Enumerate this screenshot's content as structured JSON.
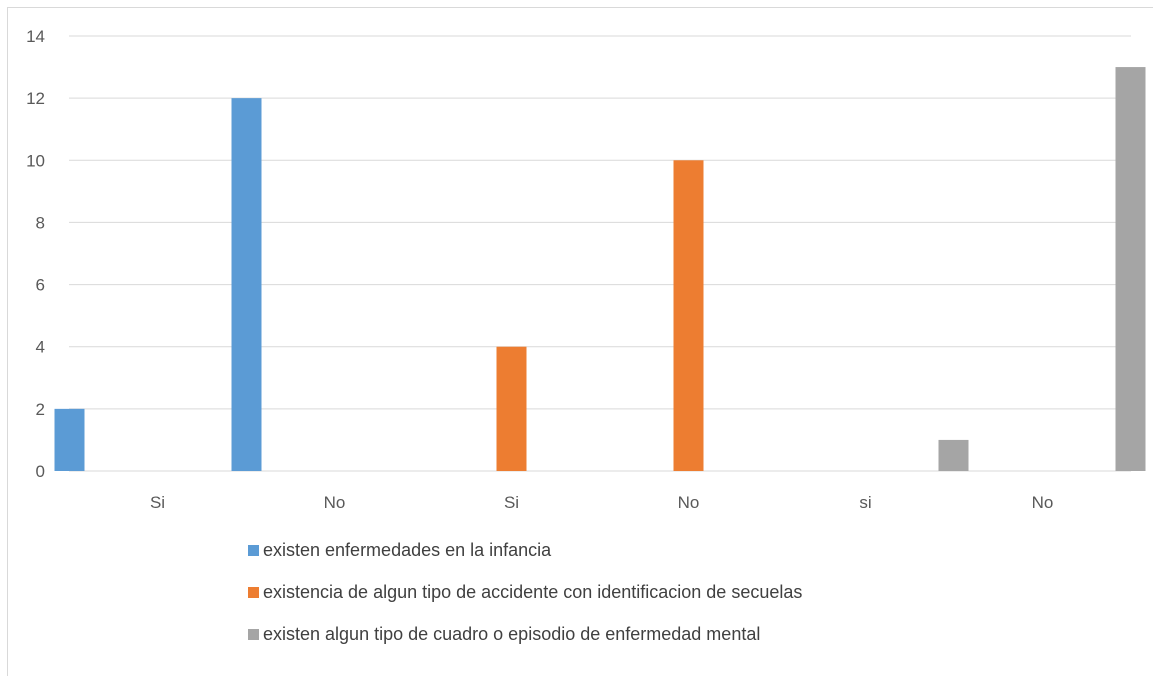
{
  "chart_data": {
    "type": "bar",
    "categories": [
      "Si",
      "No",
      "Si",
      "No",
      "si",
      "No"
    ],
    "series": [
      {
        "name": "existen enfermedades en la infancia",
        "color": "#5b9bd5",
        "values": [
          2,
          12,
          null,
          null,
          null,
          null
        ]
      },
      {
        "name": "existencia de algun tipo de accidente con identificacion de secuelas",
        "color": "#ed7d31",
        "values": [
          null,
          null,
          4,
          10,
          null,
          null
        ]
      },
      {
        "name": "existen algun tipo de cuadro o episodio de enfermedad mental",
        "color": "#a5a5a5",
        "values": [
          null,
          null,
          null,
          null,
          1,
          13
        ]
      }
    ],
    "yticks": [
      0,
      2,
      4,
      6,
      8,
      10,
      12,
      14
    ],
    "ylim": [
      0,
      14
    ],
    "grid": true,
    "legend_position": "bottom",
    "title": "",
    "xlabel": "",
    "ylabel": ""
  }
}
